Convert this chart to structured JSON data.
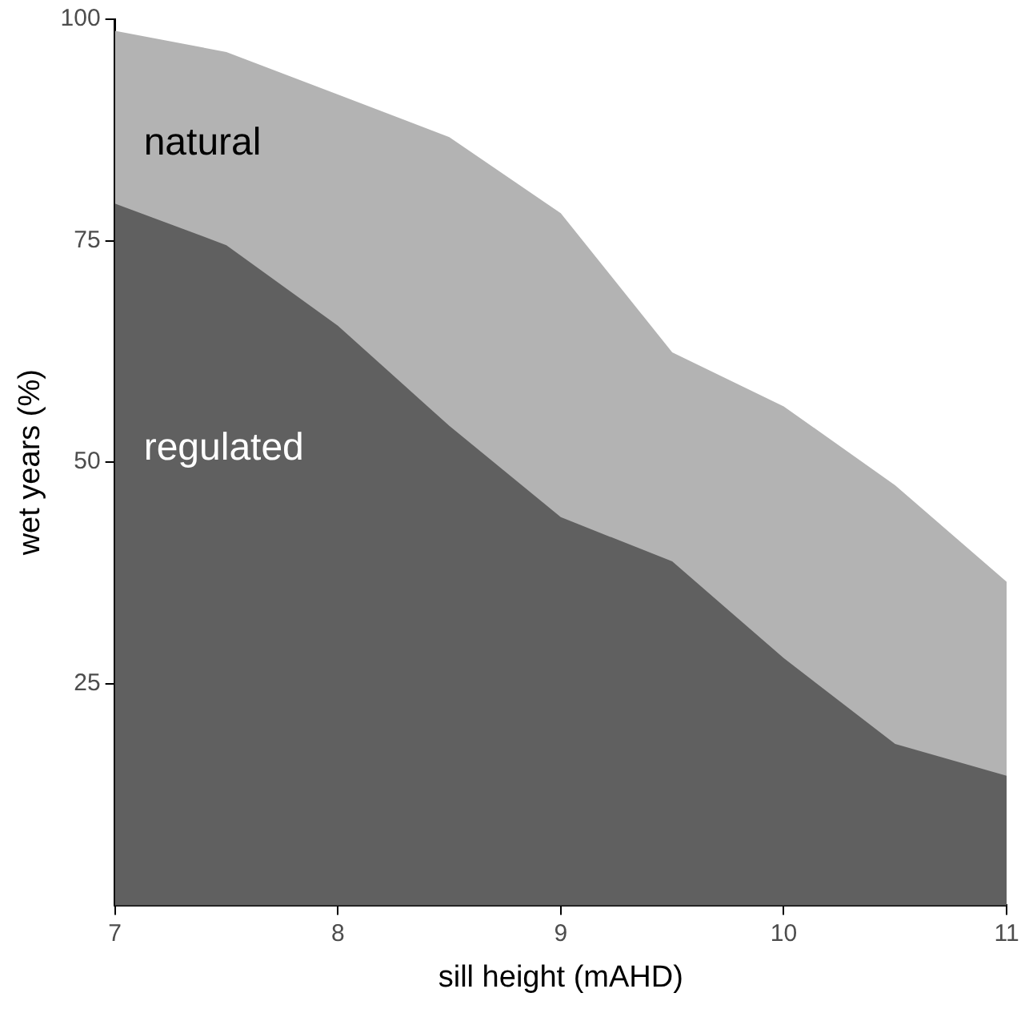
{
  "chart_data": {
    "type": "area",
    "xlabel": "sill height (mAHD)",
    "ylabel": "wet years (%)",
    "x": [
      7,
      7.5,
      8,
      8.5,
      9,
      9.5,
      10,
      10.5,
      11
    ],
    "series": [
      {
        "name": "natural",
        "color": "#b3b3b3",
        "values": [
          98.7,
          96.3,
          91.5,
          86.7,
          78.1,
          62.4,
          56.3,
          47.4,
          36.5
        ]
      },
      {
        "name": "regulated",
        "color": "#606060",
        "values": [
          79.2,
          74.5,
          65.4,
          54.1,
          43.8,
          38.8,
          27.9,
          18.2,
          14.6
        ]
      }
    ],
    "xlim": [
      7,
      11
    ],
    "xticks": [
      7,
      8,
      9,
      10,
      11
    ],
    "ylim": [
      0,
      100
    ],
    "yticks": [
      25,
      50,
      75,
      100
    ],
    "grid": false,
    "legend": false
  }
}
